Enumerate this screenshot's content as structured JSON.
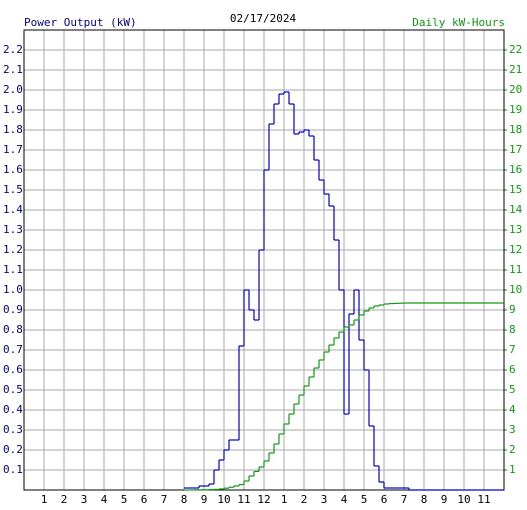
{
  "chart_data": {
    "type": "step",
    "title": "02/17/2024",
    "ylabel": "Power Output (kW)",
    "y2label": "Daily kW-Hours",
    "x": [
      8,
      8.25,
      8.5,
      8.75,
      9,
      9.25,
      9.5,
      9.75,
      10,
      10.25,
      10.5,
      10.75,
      11,
      11.25,
      11.5,
      11.75,
      12,
      12.25,
      12.5,
      12.75,
      13,
      13.25,
      13.5,
      13.75,
      14,
      14.25,
      14.5,
      14.75,
      15,
      15.25,
      15.5,
      15.75,
      16,
      16.25,
      16.5,
      16.75,
      17,
      17.25,
      17.5,
      17.75,
      18,
      18.25,
      18.5,
      18.75,
      19,
      19.25,
      24
    ],
    "series": [
      {
        "color": "#0000cc",
        "axis": "y",
        "values": [
          0.01,
          0.01,
          0.01,
          0.02,
          0.02,
          0.03,
          0.1,
          0.15,
          0.2,
          0.25,
          0.25,
          0.72,
          1.0,
          0.9,
          0.85,
          1.2,
          1.6,
          1.83,
          1.93,
          1.98,
          1.99,
          1.93,
          1.78,
          1.79,
          1.8,
          1.77,
          1.65,
          1.55,
          1.48,
          1.42,
          1.25,
          1.0,
          0.38,
          0.88,
          1.0,
          0.75,
          0.6,
          0.32,
          0.12,
          0.04,
          0.01,
          0.01,
          0.01,
          0.01,
          0.01,
          0,
          0
        ]
      },
      {
        "color": "#119911",
        "axis": "y2",
        "values": [
          0,
          0,
          0.01,
          0.01,
          0.01,
          0.02,
          0.03,
          0.05,
          0.09,
          0.14,
          0.2,
          0.27,
          0.45,
          0.7,
          0.93,
          1.15,
          1.45,
          1.85,
          2.3,
          2.8,
          3.3,
          3.8,
          4.3,
          4.75,
          5.2,
          5.65,
          6.1,
          6.5,
          6.9,
          7.25,
          7.6,
          7.9,
          8.15,
          8.25,
          8.5,
          8.75,
          8.95,
          9.1,
          9.2,
          9.25,
          9.3,
          9.32,
          9.33,
          9.34,
          9.35,
          9.35,
          9.35
        ]
      }
    ],
    "xlim": [
      0,
      24
    ],
    "xticks": [
      1,
      2,
      3,
      4,
      5,
      6,
      7,
      8,
      9,
      10,
      11,
      12,
      {
        "value": 13,
        "label": "1"
      },
      {
        "value": 14,
        "label": "2"
      },
      {
        "value": 15,
        "label": "3"
      },
      {
        "value": 16,
        "label": "4"
      },
      {
        "value": 17,
        "label": "5"
      },
      {
        "value": 18,
        "label": "6"
      },
      {
        "value": 19,
        "label": "7"
      },
      {
        "value": 20,
        "label": "8"
      },
      {
        "value": 21,
        "label": "9"
      },
      {
        "value": 22,
        "label": "10"
      },
      {
        "value": 23,
        "label": "11"
      }
    ],
    "ylim": [
      0,
      2.3
    ],
    "yticks": [
      0.1,
      0.2,
      0.3,
      0.4,
      0.5,
      0.6,
      0.7,
      0.8,
      0.9,
      {
        "value": 1,
        "label": "1.0"
      },
      1.1,
      1.2,
      1.3,
      1.4,
      1.5,
      1.6,
      1.7,
      1.8,
      1.9,
      {
        "value": 2,
        "label": "2.0"
      },
      2.1,
      2.2
    ],
    "y2lim": [
      0,
      23
    ],
    "y2ticks": [
      1,
      2,
      3,
      4,
      5,
      6,
      7,
      8,
      9,
      10,
      11,
      12,
      13,
      14,
      15,
      16,
      17,
      18,
      19,
      20,
      21,
      22
    ],
    "grid": true
  }
}
